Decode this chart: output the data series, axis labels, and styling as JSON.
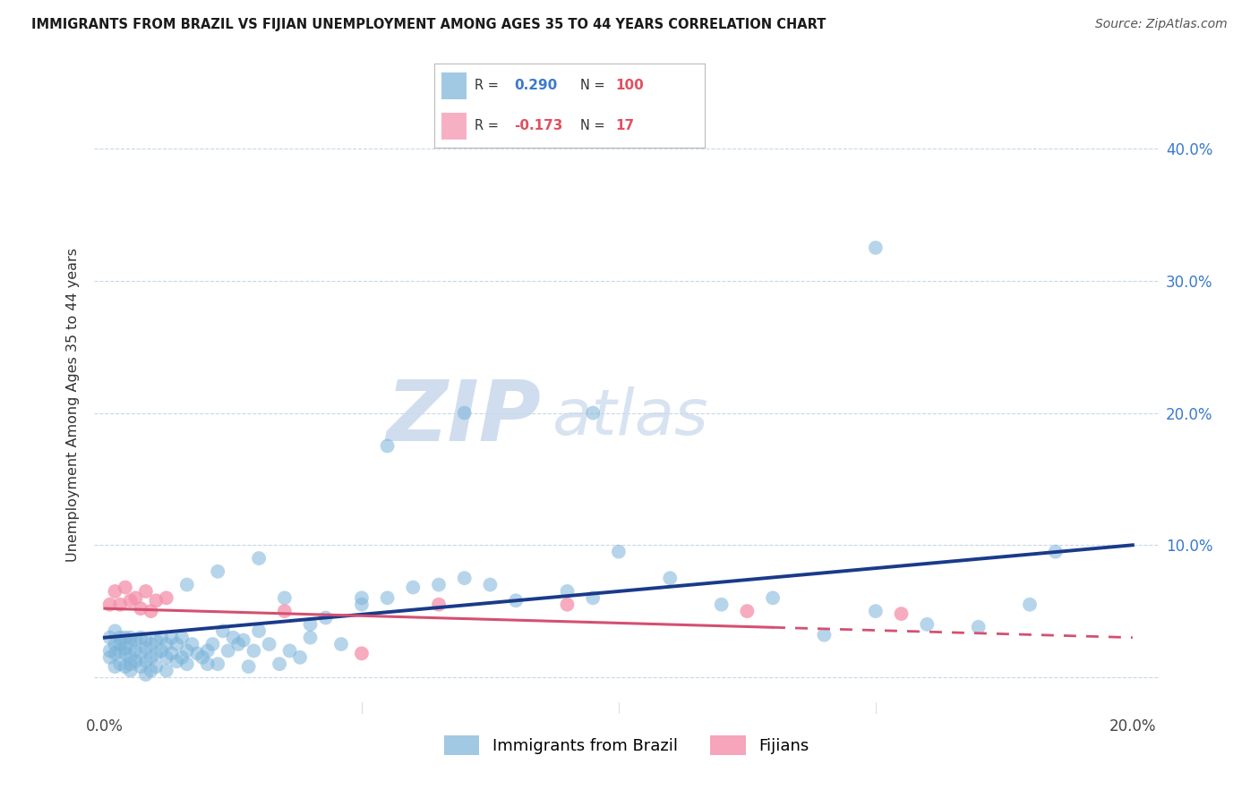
{
  "title": "IMMIGRANTS FROM BRAZIL VS FIJIAN UNEMPLOYMENT AMONG AGES 35 TO 44 YEARS CORRELATION CHART",
  "source": "Source: ZipAtlas.com",
  "ylabel": "Unemployment Among Ages 35 to 44 years",
  "xlim": [
    -0.002,
    0.205
  ],
  "ylim": [
    -0.028,
    0.44
  ],
  "xtick_vals": [
    0.0,
    0.05,
    0.1,
    0.15,
    0.2
  ],
  "xtick_labels": [
    "0.0%",
    "",
    "",
    "",
    "20.0%"
  ],
  "ytick_vals": [
    0.0,
    0.1,
    0.2,
    0.3,
    0.4
  ],
  "ytick_labels_right": [
    "",
    "10.0%",
    "20.0%",
    "30.0%",
    "40.0%"
  ],
  "brazil_scatter_color": "#7ab3d9",
  "brazil_line_color": "#1a3a8a",
  "fijian_scatter_color": "#f48faa",
  "fijian_line_color": "#d45070",
  "legend_box_color": "#a8cce8",
  "legend_fijian_color": "#f5a0b8",
  "watermark_color": "#dce8f5",
  "grid_color": "#c8d8e8",
  "title_color": "#1a1a1a",
  "source_color": "#555555",
  "axis_label_color": "#3a7acc",
  "ylabel_color": "#333333",
  "brazil_N": 100,
  "fijian_N": 17,
  "brazil_R_str": "0.290",
  "fijian_R_str": "-0.173",
  "brazil_R_color": "#3a7acc",
  "fijian_R_color": "#e05060",
  "N_color_brazil": "#e05060",
  "N_color_fijian": "#e05060",
  "brazil_trend_start_y": 0.03,
  "brazil_trend_end_y": 0.1,
  "fijian_trend_start_y": 0.052,
  "fijian_trend_end_y": 0.03,
  "brazil_x": [
    0.001,
    0.001,
    0.001,
    0.002,
    0.002,
    0.002,
    0.002,
    0.003,
    0.003,
    0.003,
    0.003,
    0.004,
    0.004,
    0.004,
    0.004,
    0.005,
    0.005,
    0.005,
    0.005,
    0.005,
    0.006,
    0.006,
    0.006,
    0.007,
    0.007,
    0.007,
    0.008,
    0.008,
    0.008,
    0.009,
    0.009,
    0.009,
    0.01,
    0.01,
    0.01,
    0.011,
    0.011,
    0.012,
    0.012,
    0.013,
    0.013,
    0.014,
    0.014,
    0.015,
    0.015,
    0.016,
    0.016,
    0.017,
    0.018,
    0.019,
    0.02,
    0.021,
    0.022,
    0.023,
    0.024,
    0.025,
    0.026,
    0.027,
    0.028,
    0.029,
    0.03,
    0.032,
    0.034,
    0.036,
    0.038,
    0.04,
    0.043,
    0.046,
    0.05,
    0.055,
    0.06,
    0.065,
    0.07,
    0.075,
    0.08,
    0.09,
    0.095,
    0.1,
    0.11,
    0.12,
    0.13,
    0.14,
    0.15,
    0.16,
    0.17,
    0.18,
    0.15,
    0.095,
    0.055,
    0.035,
    0.02,
    0.012,
    0.008,
    0.016,
    0.022,
    0.03,
    0.185,
    0.07,
    0.05,
    0.04
  ],
  "brazil_y": [
    0.02,
    0.03,
    0.015,
    0.025,
    0.018,
    0.035,
    0.008,
    0.02,
    0.03,
    0.01,
    0.025,
    0.018,
    0.03,
    0.008,
    0.022,
    0.015,
    0.025,
    0.01,
    0.03,
    0.005,
    0.02,
    0.028,
    0.012,
    0.018,
    0.03,
    0.008,
    0.022,
    0.012,
    0.028,
    0.015,
    0.025,
    0.005,
    0.018,
    0.028,
    0.008,
    0.02,
    0.03,
    0.015,
    0.025,
    0.018,
    0.03,
    0.012,
    0.025,
    0.015,
    0.03,
    0.02,
    0.01,
    0.025,
    0.018,
    0.015,
    0.02,
    0.025,
    0.01,
    0.035,
    0.02,
    0.03,
    0.025,
    0.028,
    0.008,
    0.02,
    0.035,
    0.025,
    0.01,
    0.02,
    0.015,
    0.03,
    0.045,
    0.025,
    0.055,
    0.06,
    0.068,
    0.07,
    0.075,
    0.07,
    0.058,
    0.065,
    0.06,
    0.095,
    0.075,
    0.055,
    0.06,
    0.032,
    0.05,
    0.04,
    0.038,
    0.055,
    0.325,
    0.2,
    0.175,
    0.06,
    0.01,
    0.005,
    0.002,
    0.07,
    0.08,
    0.09,
    0.095,
    0.2,
    0.06,
    0.04
  ],
  "fijian_x": [
    0.001,
    0.002,
    0.003,
    0.004,
    0.005,
    0.006,
    0.007,
    0.008,
    0.009,
    0.01,
    0.012,
    0.035,
    0.05,
    0.065,
    0.09,
    0.125,
    0.155
  ],
  "fijian_y": [
    0.055,
    0.065,
    0.055,
    0.068,
    0.058,
    0.06,
    0.052,
    0.065,
    0.05,
    0.058,
    0.06,
    0.05,
    0.018,
    0.055,
    0.055,
    0.05,
    0.048
  ]
}
